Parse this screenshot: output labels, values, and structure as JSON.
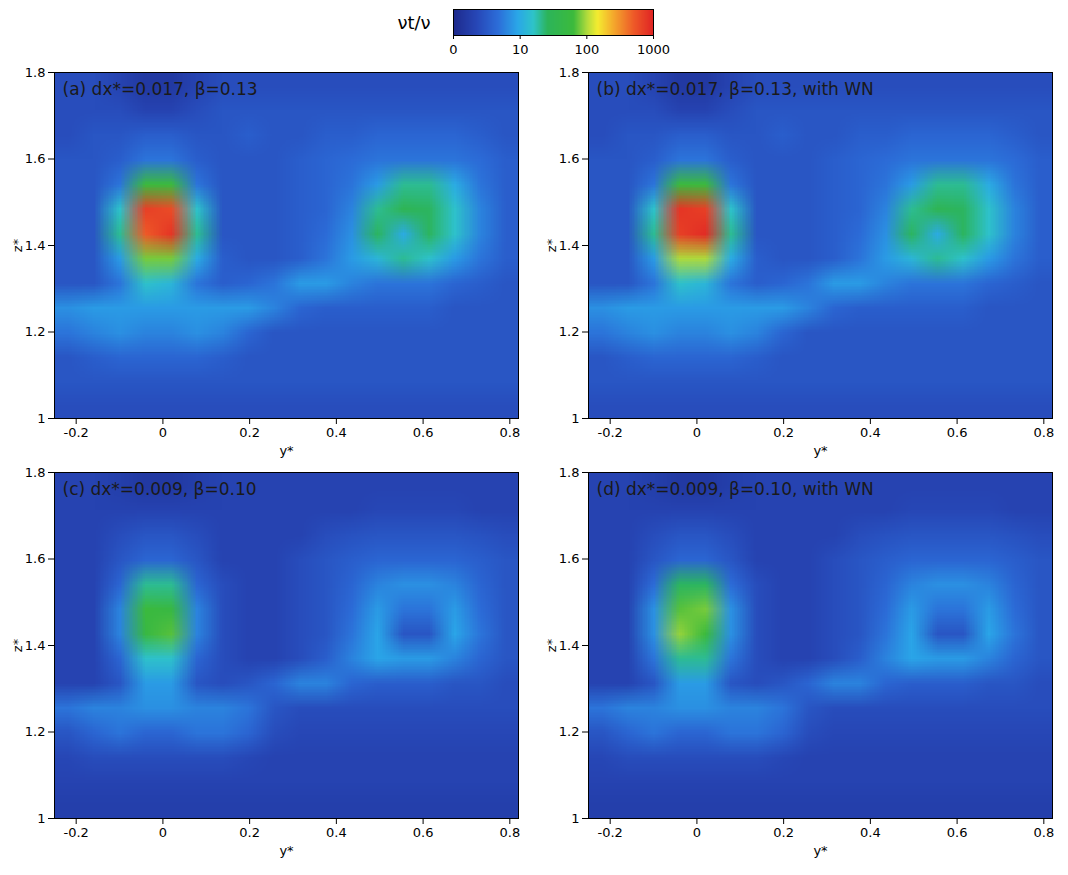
{
  "chart_data": [
    {
      "type": "heatmap",
      "title": "(a) dx*=0.017, β=0.13",
      "x_label": "y*",
      "y_label": "z*",
      "xlim": [
        -0.25,
        0.82
      ],
      "xticks": [
        -0.2,
        0,
        0.2,
        0.4,
        0.6,
        0.8
      ],
      "ylim": [
        1,
        1.8
      ],
      "yticks": [
        1,
        1.2,
        1.4,
        1.6,
        1.8
      ],
      "cells": [
        [
          2.5,
          2.5,
          2,
          1.5,
          1.5,
          2,
          2.5,
          2.5,
          2.5,
          2.5,
          2.5,
          2.5,
          2.5,
          2.5,
          2.5,
          2.5,
          2.5,
          2.5
        ],
        [
          2.5,
          2.5,
          2.5,
          2,
          2,
          2.5,
          3,
          3,
          3,
          3,
          3,
          3,
          3,
          3,
          3,
          3,
          3,
          3
        ],
        [
          2.5,
          3,
          3,
          3.5,
          3.5,
          3,
          3,
          3.5,
          3,
          3,
          3.5,
          3.5,
          4,
          4,
          4,
          4,
          3.5,
          3
        ],
        [
          3,
          3,
          3.5,
          5,
          5,
          3.5,
          3,
          3,
          3,
          3.5,
          4,
          4.5,
          5,
          5,
          5,
          5,
          4.5,
          3.5
        ],
        [
          3,
          3,
          5,
          60,
          60,
          5,
          3,
          3,
          3,
          3.5,
          4,
          5,
          8,
          20,
          20,
          10,
          5,
          3.5
        ],
        [
          3,
          3,
          15,
          700,
          600,
          15,
          3,
          3,
          3,
          3.5,
          4,
          6,
          20,
          30,
          25,
          15,
          6,
          3.5
        ],
        [
          3,
          3,
          20,
          500,
          800,
          20,
          3,
          3,
          3,
          3.5,
          4.5,
          7,
          25,
          10,
          25,
          15,
          6,
          3.5
        ],
        [
          3,
          3,
          8,
          80,
          80,
          10,
          3.5,
          3,
          3,
          3.5,
          5,
          8,
          12,
          20,
          15,
          8,
          5,
          3.5
        ],
        [
          3,
          3,
          5,
          15,
          12,
          5,
          3.5,
          4,
          5,
          8,
          8,
          6,
          5,
          5,
          5,
          4,
          3.5,
          3
        ],
        [
          7,
          8,
          8,
          8,
          8,
          8,
          8,
          8,
          6,
          4,
          3.5,
          3.5,
          3.5,
          3.5,
          3.5,
          3,
          3,
          3
        ],
        [
          5,
          6,
          7,
          6,
          6,
          7,
          6,
          4,
          3,
          3,
          3,
          3,
          3,
          3,
          3,
          3,
          3,
          3
        ],
        [
          3,
          3.5,
          4,
          4,
          4,
          4,
          3.5,
          3,
          3,
          3,
          3,
          3,
          3,
          3,
          3,
          3,
          3,
          3
        ],
        [
          3,
          3,
          3,
          3,
          3,
          3,
          3,
          3,
          3,
          3,
          3,
          3,
          3,
          3,
          3,
          3,
          3,
          3
        ],
        [
          2.5,
          2.5,
          2.5,
          2.5,
          2.5,
          2.5,
          2.5,
          2.5,
          2.5,
          2.5,
          2.5,
          2.5,
          2.5,
          2.5,
          2.5,
          2.5,
          2.5,
          2.5
        ]
      ]
    },
    {
      "type": "heatmap",
      "title": "(b) dx*=0.017, β=0.13, with WN",
      "x_label": "y*",
      "y_label": "z*",
      "xlim": [
        -0.25,
        0.82
      ],
      "xticks": [
        -0.2,
        0,
        0.2,
        0.4,
        0.6,
        0.8
      ],
      "ylim": [
        1,
        1.8
      ],
      "yticks": [
        1,
        1.2,
        1.4,
        1.6,
        1.8
      ],
      "cells": [
        [
          2.5,
          2.5,
          2,
          1.5,
          1.5,
          2,
          2.5,
          2.5,
          2.5,
          2.5,
          2.5,
          2.5,
          2.5,
          2.5,
          2.5,
          2.5,
          2.5,
          2.5
        ],
        [
          2.5,
          2.5,
          2.5,
          2,
          2,
          2.5,
          3,
          3,
          3,
          3,
          3,
          3,
          3,
          3,
          3,
          3,
          3,
          3
        ],
        [
          2.5,
          3,
          3,
          3.5,
          3.5,
          3,
          3,
          3.5,
          3,
          3,
          3.5,
          3.5,
          4,
          4,
          4,
          4,
          3.5,
          3
        ],
        [
          3,
          3,
          3.5,
          5,
          5,
          3.5,
          3,
          3,
          3,
          3.5,
          4,
          4.5,
          5,
          5,
          5,
          5,
          4.5,
          3.5
        ],
        [
          3,
          3,
          5,
          60,
          60,
          5,
          3,
          3,
          3,
          3.5,
          4,
          5,
          8,
          20,
          20,
          10,
          5,
          3.5
        ],
        [
          3,
          3,
          15,
          800,
          700,
          15,
          3,
          3,
          3,
          3.5,
          4,
          6,
          20,
          30,
          25,
          15,
          6,
          3.5
        ],
        [
          3,
          3,
          20,
          700,
          900,
          20,
          3,
          3,
          3,
          3.5,
          4.5,
          7,
          25,
          10,
          25,
          15,
          6,
          3.5
        ],
        [
          3,
          3,
          8,
          100,
          100,
          10,
          3.5,
          3,
          3,
          3.5,
          5,
          8,
          12,
          20,
          15,
          8,
          5,
          3.5
        ],
        [
          3,
          3,
          5,
          15,
          12,
          5,
          3.5,
          4,
          5,
          8,
          8,
          6,
          5,
          5,
          5,
          4,
          3.5,
          3
        ],
        [
          7,
          8,
          8,
          8,
          8,
          8,
          8,
          8,
          6,
          4,
          3.5,
          3.5,
          3.5,
          3.5,
          3.5,
          3,
          3,
          3
        ],
        [
          5,
          6,
          7,
          6,
          6,
          7,
          6,
          4,
          3,
          3,
          3,
          3,
          3,
          3,
          3,
          3,
          3,
          3
        ],
        [
          3,
          3.5,
          4,
          4,
          4,
          4,
          3.5,
          3,
          3,
          3,
          3,
          3,
          3,
          3,
          3,
          3,
          3,
          3
        ],
        [
          3,
          3,
          3,
          3,
          3,
          3,
          3,
          3,
          3,
          3,
          3,
          3,
          3,
          3,
          3,
          3,
          3,
          3
        ],
        [
          2.5,
          2.5,
          2.5,
          2.5,
          2.5,
          2.5,
          2.5,
          2.5,
          2.5,
          2.5,
          2.5,
          2.5,
          2.5,
          2.5,
          2.5,
          2.5,
          2.5,
          2.5
        ]
      ]
    },
    {
      "type": "heatmap",
      "title": "(c) dx*=0.009, β=0.10",
      "x_label": "y*",
      "y_label": "z*",
      "xlim": [
        -0.25,
        0.82
      ],
      "xticks": [
        -0.2,
        0,
        0.2,
        0.4,
        0.6,
        0.8
      ],
      "ylim": [
        1,
        1.8
      ],
      "yticks": [
        1,
        1.2,
        1.4,
        1.6,
        1.8
      ],
      "cells": [
        [
          2,
          2,
          1.8,
          1.5,
          1.5,
          1.8,
          2,
          2,
          2,
          2,
          2,
          2,
          2,
          2,
          2,
          2,
          2,
          2
        ],
        [
          2,
          2,
          2,
          2,
          2,
          2,
          2,
          2,
          2,
          2,
          2,
          2,
          2.2,
          2.2,
          2.2,
          2.2,
          2,
          2
        ],
        [
          2,
          2,
          2.5,
          3,
          3,
          2.5,
          2,
          2,
          2,
          2,
          2.5,
          2.8,
          3,
          3,
          3,
          3,
          2.8,
          2.5
        ],
        [
          2,
          2,
          3,
          4,
          4,
          3,
          2,
          2,
          2,
          2.5,
          3,
          3.5,
          4,
          4,
          4,
          4,
          3.5,
          3
        ],
        [
          2,
          2,
          4,
          20,
          20,
          4,
          2.5,
          2,
          2,
          2.5,
          3,
          4,
          6,
          7,
          7,
          6,
          4,
          3
        ],
        [
          2,
          2,
          6,
          60,
          50,
          6,
          2.5,
          2,
          2,
          2.5,
          3,
          4.5,
          8,
          5,
          5,
          8,
          4.5,
          3
        ],
        [
          2,
          2,
          6,
          50,
          70,
          6,
          2.5,
          2,
          2,
          2.5,
          3,
          5,
          9,
          3,
          3,
          9,
          5,
          3
        ],
        [
          2,
          2,
          4,
          15,
          15,
          4,
          2.5,
          2,
          2,
          2.5,
          3.5,
          6,
          9,
          8,
          8,
          6,
          4,
          3
        ],
        [
          2,
          2,
          3,
          8,
          8,
          3,
          2.5,
          3,
          4,
          6,
          6,
          4,
          3.5,
          3.5,
          3.5,
          3,
          3,
          2.5
        ],
        [
          5,
          6,
          6,
          7,
          7,
          6,
          6,
          5,
          3,
          2.5,
          2.5,
          2.5,
          2.5,
          2.5,
          2.5,
          2.5,
          2.5,
          2.5
        ],
        [
          3,
          4,
          5,
          4,
          4,
          5,
          5,
          4,
          2.5,
          2.2,
          2.2,
          2.2,
          2.2,
          2.2,
          2.2,
          2.2,
          2.2,
          2.2
        ],
        [
          2.2,
          2.5,
          2.5,
          2.5,
          2.5,
          2.5,
          2.5,
          2.2,
          2,
          2,
          2,
          2,
          2,
          2,
          2,
          2,
          2,
          2
        ],
        [
          2,
          2,
          2,
          2,
          2,
          2,
          2,
          2,
          2,
          2,
          2,
          2,
          2,
          2,
          2,
          2,
          2,
          2
        ],
        [
          1.8,
          1.8,
          1.8,
          1.8,
          1.8,
          1.8,
          1.8,
          1.8,
          1.8,
          1.8,
          1.8,
          1.8,
          1.8,
          1.8,
          1.8,
          1.8,
          1.8,
          1.8
        ]
      ]
    },
    {
      "type": "heatmap",
      "title": "(d) dx*=0.009, β=0.10, with WN",
      "x_label": "y*",
      "y_label": "z*",
      "xlim": [
        -0.25,
        0.82
      ],
      "xticks": [
        -0.2,
        0,
        0.2,
        0.4,
        0.6,
        0.8
      ],
      "ylim": [
        1,
        1.8
      ],
      "yticks": [
        1,
        1.2,
        1.4,
        1.6,
        1.8
      ],
      "cells": [
        [
          2,
          2,
          1.8,
          1.5,
          1.5,
          1.8,
          2,
          2,
          2,
          2,
          2,
          2,
          2,
          2,
          2,
          2,
          2,
          2
        ],
        [
          2,
          2,
          2,
          2,
          2,
          2,
          2,
          2,
          2,
          2,
          2,
          2,
          2.2,
          2.2,
          2.2,
          2.2,
          2,
          2
        ],
        [
          2,
          2,
          2.5,
          3,
          3,
          2.5,
          2,
          2,
          2,
          2,
          2.5,
          2.8,
          3,
          3,
          3,
          3,
          2.8,
          2.5
        ],
        [
          2,
          2,
          3,
          4,
          4,
          3,
          2,
          2,
          2,
          2.5,
          3,
          3.5,
          4,
          4,
          4,
          4,
          3.5,
          3
        ],
        [
          2,
          2,
          4.5,
          25,
          25,
          4.5,
          2.5,
          2,
          2,
          2.5,
          3,
          4,
          6,
          7,
          7,
          6,
          4,
          3
        ],
        [
          2,
          2,
          7,
          70,
          80,
          7,
          2.5,
          2,
          2,
          2.5,
          3,
          4.5,
          8,
          5,
          5,
          8,
          4.5,
          3
        ],
        [
          2,
          2,
          7,
          90,
          60,
          7,
          2.5,
          2,
          2,
          2.5,
          3,
          5,
          9,
          3,
          3,
          9,
          5,
          3
        ],
        [
          2,
          2,
          5,
          20,
          20,
          5,
          2.5,
          2,
          2,
          2.5,
          3.5,
          6,
          9,
          8,
          8,
          6,
          4,
          3
        ],
        [
          2,
          2,
          3,
          8,
          8,
          3,
          2.5,
          3,
          4,
          6,
          6,
          4,
          3.5,
          3.5,
          3.5,
          3,
          3,
          2.5
        ],
        [
          5,
          6,
          6,
          7,
          7,
          6,
          6,
          5,
          3,
          2.5,
          2.5,
          2.5,
          2.5,
          2.5,
          2.5,
          2.5,
          2.5,
          2.5
        ],
        [
          3,
          4,
          5,
          4,
          4,
          5,
          5,
          4,
          2.5,
          2.2,
          2.2,
          2.2,
          2.2,
          2.2,
          2.2,
          2.2,
          2.2,
          2.2
        ],
        [
          2.2,
          2.5,
          2.5,
          2.5,
          2.5,
          2.5,
          2.5,
          2.2,
          2,
          2,
          2,
          2,
          2,
          2,
          2,
          2,
          2,
          2
        ],
        [
          2,
          2,
          2,
          2,
          2,
          2,
          2,
          2,
          2,
          2,
          2,
          2,
          2,
          2,
          2,
          2,
          2,
          2
        ],
        [
          1.8,
          1.8,
          1.8,
          1.8,
          1.8,
          1.8,
          1.8,
          1.8,
          1.8,
          1.8,
          1.8,
          1.8,
          1.8,
          1.8,
          1.8,
          1.8,
          1.8,
          1.8
        ]
      ]
    }
  ],
  "colorbar": {
    "label": "νt/ν",
    "log": true,
    "range": [
      1,
      1000
    ],
    "ticks": [
      {
        "value": 1,
        "label": "0"
      },
      10,
      100,
      1000
    ]
  }
}
